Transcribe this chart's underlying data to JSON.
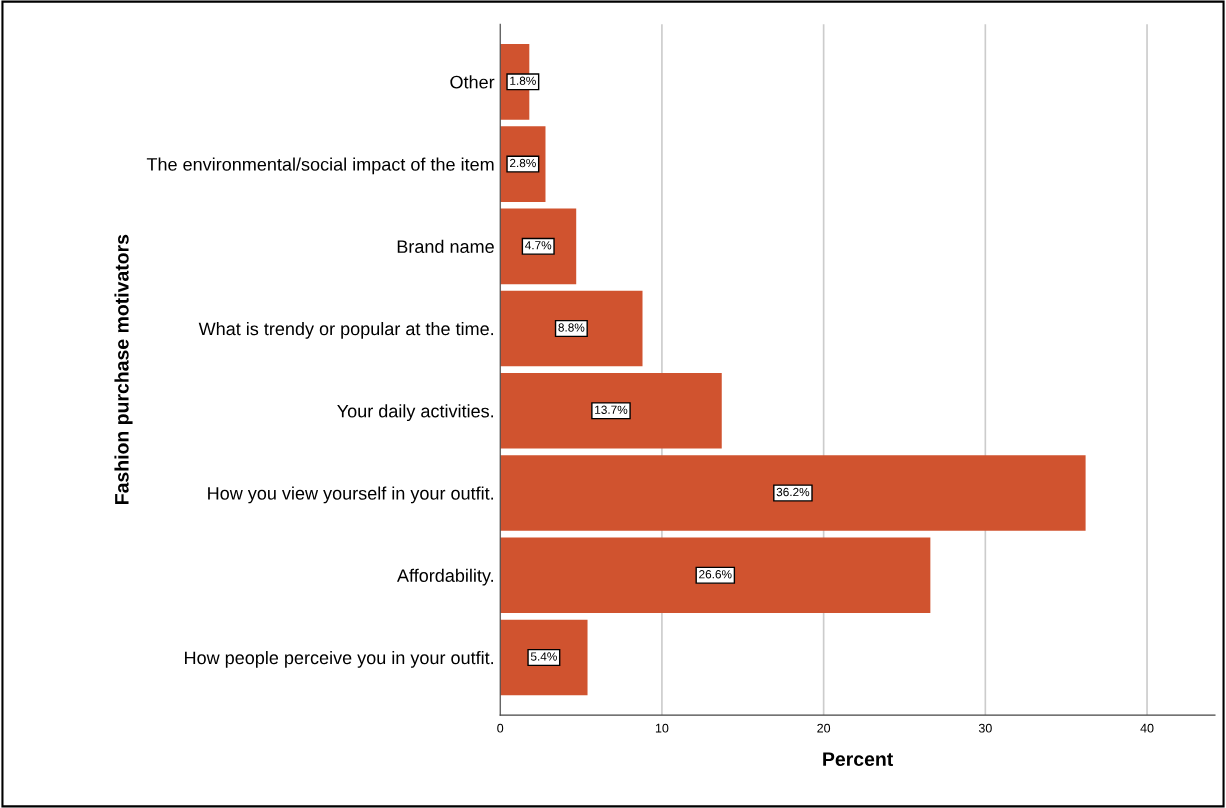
{
  "chart_data": {
    "type": "bar",
    "orientation": "horizontal",
    "xlabel": "Percent",
    "ylabel": "Fashion purchase motivators",
    "categories": [
      "Other",
      "The environmental/social impact of the item",
      "Brand name",
      "What is trendy or popular at the time.",
      "Your daily activities.",
      "How you view yourself in your outfit.",
      "Affordability.",
      "How people perceive you in your outfit."
    ],
    "values": [
      1.8,
      2.8,
      4.7,
      8.8,
      13.7,
      36.2,
      26.6,
      5.4
    ],
    "value_labels": [
      "1.8%",
      "2.8%",
      "4.7%",
      "8.8%",
      "13.7%",
      "36.2%",
      "26.6%",
      "5.4%"
    ],
    "color": "#d0532f",
    "xlim": [
      0,
      44.2
    ],
    "xticks": [
      0,
      10,
      20,
      30,
      40
    ],
    "grid": "x"
  }
}
